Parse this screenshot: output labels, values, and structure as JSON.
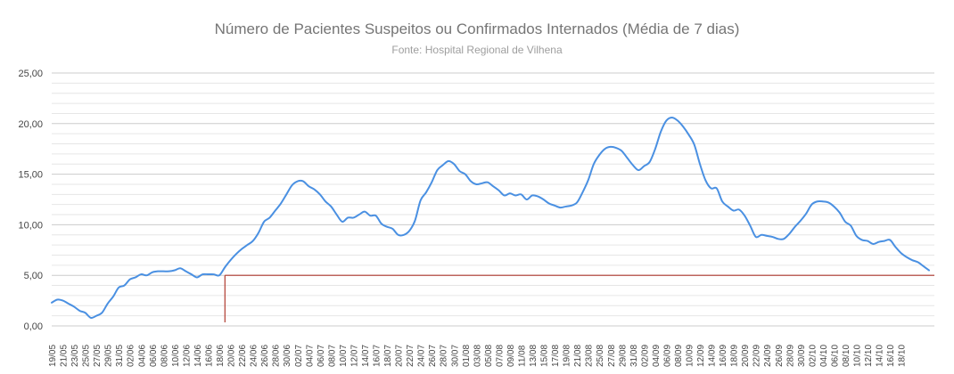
{
  "chart_data": {
    "type": "line",
    "title": "Número de Pacientes Suspeitos ou Confirmados Internados (Média de 7 dias)",
    "subtitle": "Fonte: Hospital Regional de Vilhena",
    "xlabel": "",
    "ylabel": "",
    "ylim": [
      0,
      25
    ],
    "yticks": [
      "0,00",
      "5,00",
      "10,00",
      "15,00",
      "20,00",
      "25,00"
    ],
    "grid": true,
    "legend": "none",
    "x_tick_labels": [
      "19/05",
      "21/05",
      "23/05",
      "25/05",
      "27/05",
      "29/05",
      "31/05",
      "02/06",
      "04/06",
      "06/06",
      "08/06",
      "10/06",
      "12/06",
      "14/06",
      "16/06",
      "18/06",
      "20/06",
      "22/06",
      "24/06",
      "26/06",
      "28/06",
      "30/06",
      "02/07",
      "04/07",
      "06/07",
      "08/07",
      "10/07",
      "12/07",
      "14/07",
      "16/07",
      "18/07",
      "20/07",
      "22/07",
      "24/07",
      "26/07",
      "28/07",
      "30/07",
      "01/08",
      "03/08",
      "05/08",
      "07/08",
      "09/08",
      "11/08",
      "13/08",
      "15/08",
      "17/08",
      "19/08",
      "21/08",
      "23/08",
      "25/08",
      "27/08",
      "29/08",
      "31/08",
      "02/09",
      "04/09",
      "06/09",
      "08/09",
      "10/09",
      "12/09",
      "14/09",
      "16/09",
      "18/09",
      "20/09",
      "22/09",
      "24/09",
      "26/09",
      "28/09",
      "30/09",
      "02/10",
      "04/10",
      "06/10",
      "08/10",
      "10/10",
      "12/10",
      "14/10",
      "16/10",
      "18/10"
    ],
    "series": [
      {
        "name": "",
        "color": "#4a90e2",
        "values": [
          2.3,
          2.6,
          2.5,
          2.2,
          1.9,
          1.5,
          1.3,
          0.8,
          1.0,
          1.3,
          2.2,
          2.9,
          3.8,
          4.0,
          4.6,
          4.8,
          5.1,
          5.0,
          5.3,
          5.4,
          5.4,
          5.4,
          5.5,
          5.7,
          5.4,
          5.1,
          4.8,
          5.1,
          5.1,
          5.1,
          5.0,
          5.8,
          6.5,
          7.1,
          7.6,
          8.0,
          8.4,
          9.2,
          10.3,
          10.7,
          11.4,
          12.1,
          13.0,
          13.9,
          14.3,
          14.3,
          13.8,
          13.5,
          13.0,
          12.3,
          11.8,
          11.0,
          10.3,
          10.7,
          10.7,
          11.0,
          11.3,
          10.9,
          10.9,
          10.1,
          9.8,
          9.6,
          9.0,
          9.0,
          9.4,
          10.4,
          12.4,
          13.2,
          14.2,
          15.4,
          15.9,
          16.3,
          16.0,
          15.3,
          15.0,
          14.3,
          14.0,
          14.1,
          14.2,
          13.8,
          13.4,
          12.9,
          13.1,
          12.9,
          13.0,
          12.5,
          12.9,
          12.8,
          12.5,
          12.1,
          11.9,
          11.7,
          11.8,
          11.9,
          12.2,
          13.2,
          14.4,
          16.0,
          16.9,
          17.5,
          17.7,
          17.6,
          17.3,
          16.6,
          15.9,
          15.4,
          15.8,
          16.2,
          17.5,
          19.2,
          20.3,
          20.6,
          20.3,
          19.7,
          18.9,
          17.9,
          16.0,
          14.4,
          13.6,
          13.6,
          12.3,
          11.8,
          11.4,
          11.5,
          10.9,
          9.9,
          8.8,
          9.0,
          8.9,
          8.8,
          8.6,
          8.6,
          9.1,
          9.8,
          10.4,
          11.1,
          12.0,
          12.3,
          12.3,
          12.2,
          11.8,
          11.2,
          10.3,
          9.9,
          8.9,
          8.5,
          8.4,
          8.1,
          8.3,
          8.4,
          8.5,
          7.8,
          7.2,
          6.8,
          6.5,
          6.3,
          5.9,
          5.5
        ]
      }
    ],
    "reference": {
      "value": 5.0,
      "start_label": "18/06",
      "color": "#b03a2e"
    }
  }
}
